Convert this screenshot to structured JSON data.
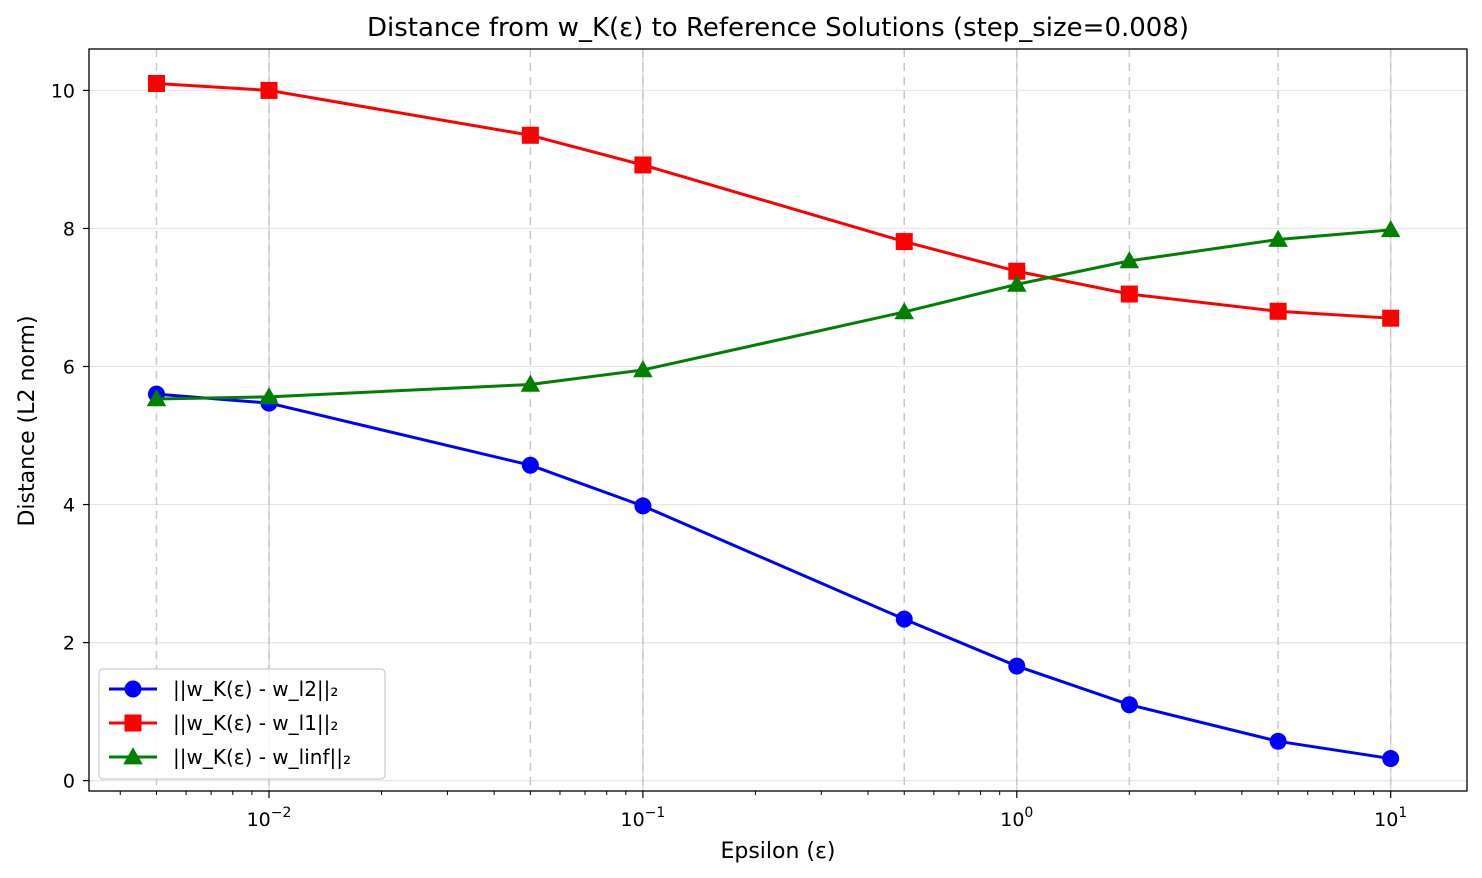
{
  "chart_data": {
    "type": "line",
    "title": "Distance from w_K(ε) to Reference Solutions (step_size=0.008)",
    "xlabel": "Epsilon (ε)",
    "ylabel": "Distance (L2 norm)",
    "xscale": "log",
    "xlim": [
      0.0033,
      16
    ],
    "ylim": [
      -0.15,
      10.6
    ],
    "x": [
      0.005,
      0.01,
      0.05,
      0.1,
      0.5,
      1.0,
      2.0,
      5.0,
      10.0
    ],
    "x_ticks": [
      {
        "base": "10",
        "exp": "−2",
        "value": 0.01
      },
      {
        "base": "10",
        "exp": "−1",
        "value": 0.1
      },
      {
        "base": "10",
        "exp": "0",
        "value": 1
      },
      {
        "base": "10",
        "exp": "1",
        "value": 10
      }
    ],
    "y_ticks": [
      "0",
      "2",
      "4",
      "6",
      "8",
      "10"
    ],
    "grid": true,
    "legend_position": "lower-left",
    "series": [
      {
        "name": "||w_K(ε) - w_l2||₂",
        "color": "#0000ff",
        "marker": "circle",
        "values": [
          5.6,
          5.47,
          4.57,
          3.98,
          2.34,
          1.66,
          1.1,
          0.57,
          0.32
        ]
      },
      {
        "name": "||w_K(ε) - w_l1||₂",
        "color": "#ff0000",
        "marker": "square",
        "values": [
          10.1,
          10.0,
          9.35,
          8.92,
          7.81,
          7.38,
          7.05,
          6.8,
          6.7
        ]
      },
      {
        "name": "||w_K(ε) - w_linf||₂",
        "color": "#008000",
        "marker": "triangle",
        "values": [
          5.53,
          5.56,
          5.74,
          5.95,
          6.79,
          7.19,
          7.53,
          7.84,
          7.98
        ]
      }
    ]
  }
}
